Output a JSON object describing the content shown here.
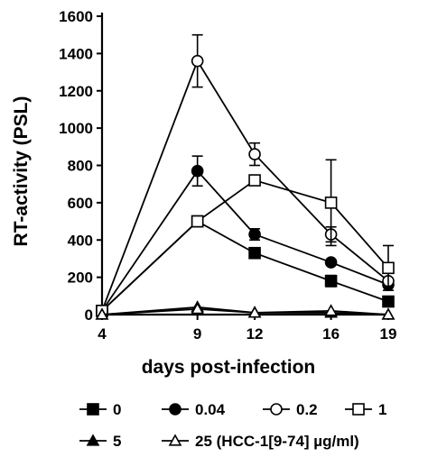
{
  "chart_data": {
    "type": "line",
    "title": "",
    "xlabel": "days post-infection",
    "ylabel": "RT-activity (PSL)",
    "x": [
      4,
      9,
      12,
      16,
      19
    ],
    "xticks": [
      "4",
      "9",
      "12",
      "16",
      "19"
    ],
    "ylim": [
      0,
      1600
    ],
    "yticks": [
      0,
      200,
      400,
      600,
      800,
      1000,
      1200,
      1400,
      1600
    ],
    "grid": false,
    "legend_position": "bottom",
    "legend_suffix": "(HCC-1[9-74] µg/ml)",
    "series": [
      {
        "name": "0",
        "marker": "square-filled",
        "values": [
          20,
          500,
          330,
          180,
          70
        ],
        "err": [
          0,
          0,
          0,
          30,
          0
        ]
      },
      {
        "name": "0.04",
        "marker": "circle-filled",
        "values": [
          20,
          770,
          430,
          280,
          160
        ],
        "err": [
          0,
          80,
          30,
          0,
          0
        ]
      },
      {
        "name": "0.2",
        "marker": "circle-open",
        "values": [
          20,
          1360,
          860,
          430,
          180
        ],
        "err": [
          0,
          140,
          60,
          40,
          0
        ]
      },
      {
        "name": "1",
        "marker": "square-open",
        "values": [
          20,
          500,
          720,
          600,
          250
        ],
        "err": [
          0,
          0,
          0,
          230,
          120
        ]
      },
      {
        "name": "5",
        "marker": "triangle-filled",
        "values": [
          0,
          40,
          10,
          10,
          0
        ],
        "err": [
          0,
          0,
          0,
          0,
          0
        ]
      },
      {
        "name": "25",
        "marker": "triangle-open",
        "values": [
          0,
          30,
          10,
          20,
          0
        ],
        "err": [
          0,
          0,
          0,
          0,
          0
        ]
      }
    ]
  }
}
